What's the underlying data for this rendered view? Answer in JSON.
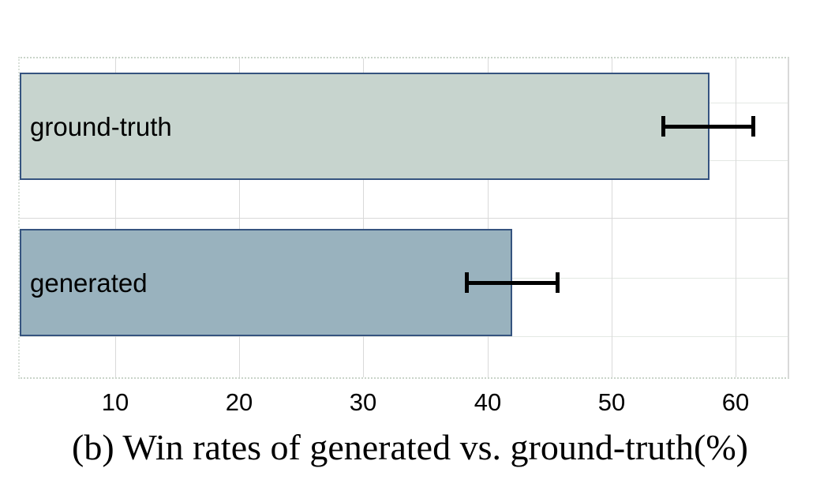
{
  "figure": {
    "caption": "(b) Win rates of generated vs. ground-truth(%)"
  },
  "chart_data": {
    "type": "bar",
    "orientation": "horizontal",
    "title": "(b) Win rates of generated vs. ground-truth(%)",
    "categories": [
      "ground-truth",
      "generated"
    ],
    "values": [
      57.9,
      42.0
    ],
    "error_bars": [
      {
        "low": 54.0,
        "high": 61.6
      },
      {
        "low": 38.2,
        "high": 45.8
      }
    ],
    "x_ticks": [
      10,
      20,
      30,
      40,
      50,
      60
    ],
    "xlim": [
      2.3,
      64.2
    ],
    "xlabel": "",
    "ylabel": "",
    "grid": "on",
    "legend": "none",
    "bar_colors": [
      "#c7d4ce",
      "#99b2be"
    ],
    "bar_border_color": "#35537f",
    "error_bar_color": "#000000",
    "gridline_color": "#d9d9d9",
    "tick_label_color": "#000000",
    "background_color": "#ffffff"
  }
}
